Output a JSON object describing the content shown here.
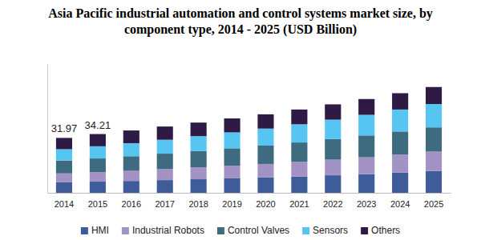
{
  "chart_data": {
    "type": "bar",
    "stacked": true,
    "title": "Asia Pacific industrial automation and control systems market size, by\ncomponent type, 2014 - 2025 (USD Billion)",
    "categories": [
      "2014",
      "2015",
      "2016",
      "2017",
      "2018",
      "2019",
      "2020",
      "2021",
      "2022",
      "2023",
      "2024",
      "2025"
    ],
    "series": [
      {
        "name": "HMI",
        "color": "#3e5c9a",
        "values": [
          6.1,
          6.5,
          6.9,
          7.4,
          7.9,
          8.4,
          8.9,
          9.5,
          10.2,
          10.9,
          11.8,
          12.7
        ]
      },
      {
        "name": "Industrial Robots",
        "color": "#a393c4",
        "values": [
          5.2,
          5.5,
          5.9,
          6.4,
          6.9,
          7.4,
          7.9,
          8.5,
          9.1,
          9.8,
          10.5,
          11.3
        ]
      },
      {
        "name": "Control Valves",
        "color": "#3f6b80",
        "values": [
          7.5,
          8.0,
          8.5,
          9.0,
          9.5,
          10.1,
          10.7,
          11.3,
          12.0,
          12.7,
          13.4,
          14.1
        ]
      },
      {
        "name": "Sensors",
        "color": "#56c5f2",
        "values": [
          6.6,
          7.1,
          7.6,
          8.1,
          8.7,
          9.3,
          9.9,
          10.6,
          11.3,
          12.0,
          12.8,
          13.6
        ]
      },
      {
        "name": "Others",
        "color": "#2f1a45",
        "values": [
          6.57,
          7.11,
          7.4,
          7.7,
          7.9,
          8.1,
          8.3,
          8.6,
          8.9,
          9.2,
          9.5,
          9.9
        ]
      }
    ],
    "annotations": [
      {
        "x": "2014",
        "y": 31.97,
        "text": "31.97"
      },
      {
        "x": "2015",
        "y": 34.21,
        "text": "34.21"
      }
    ],
    "ylim": [
      0,
      75
    ],
    "tick_labels": "x",
    "grid": false,
    "legend": "bottom"
  }
}
